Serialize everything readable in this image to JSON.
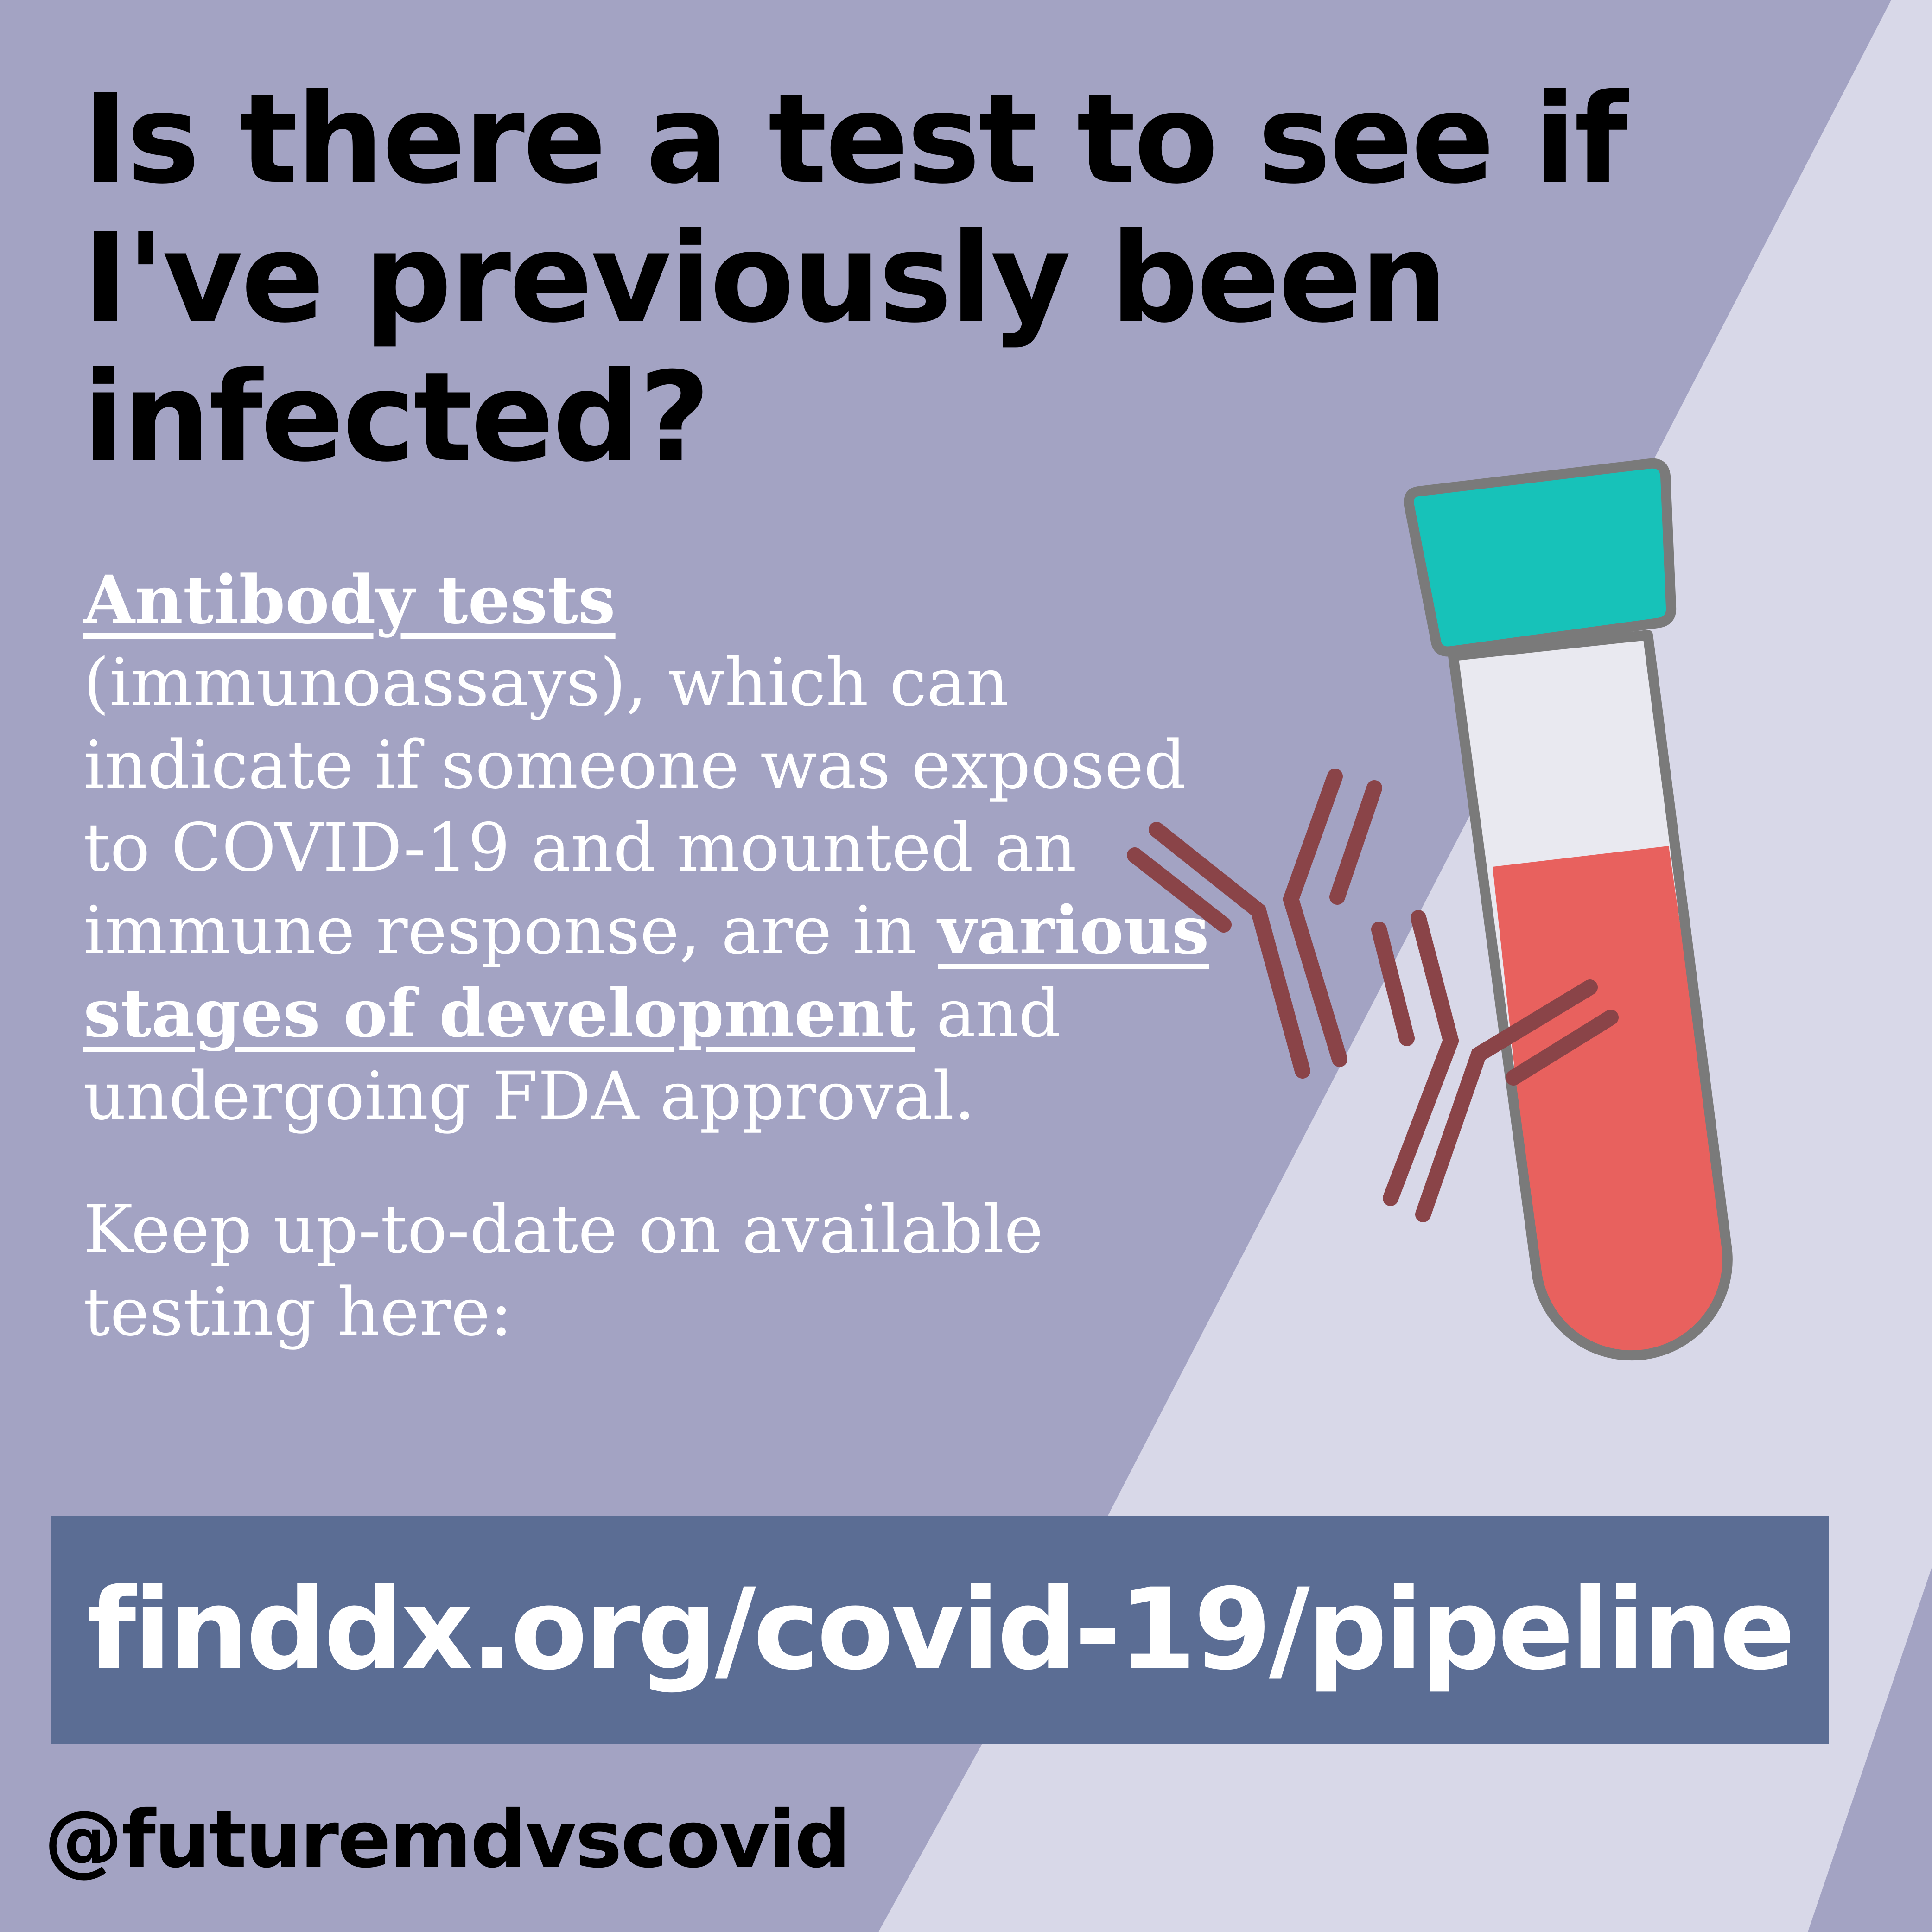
{
  "colors": {
    "background": "#a3a3c3",
    "light_stripe": "#d8d8e8",
    "url_bar": "#5b6d94",
    "tube_cap": "#17c2b9",
    "tube_blood": "#e8615e",
    "tube_empty": "#e9e9f0",
    "tube_outline": "#7a7a7a",
    "antibody": "#8a4448"
  },
  "title": "Is there a test to see if I've previously been infected?",
  "body": {
    "lead": "Antibody tests",
    "text_1": "(immunoassays), which can indicate if someone was exposed to COVID-19 and mounted an immune response, are in",
    "emphasis": "various stages of development",
    "text_2": "and undergoing FDA approval.",
    "keep_up": "Keep up-to-date on available testing here:"
  },
  "url": "finddx.org/covid-19/pipeline",
  "handle": "@futuremdvscovid",
  "icons": {
    "test_tube": "test-tube-icon",
    "antibody_left": "antibody-icon",
    "antibody_right": "antibody-icon"
  }
}
